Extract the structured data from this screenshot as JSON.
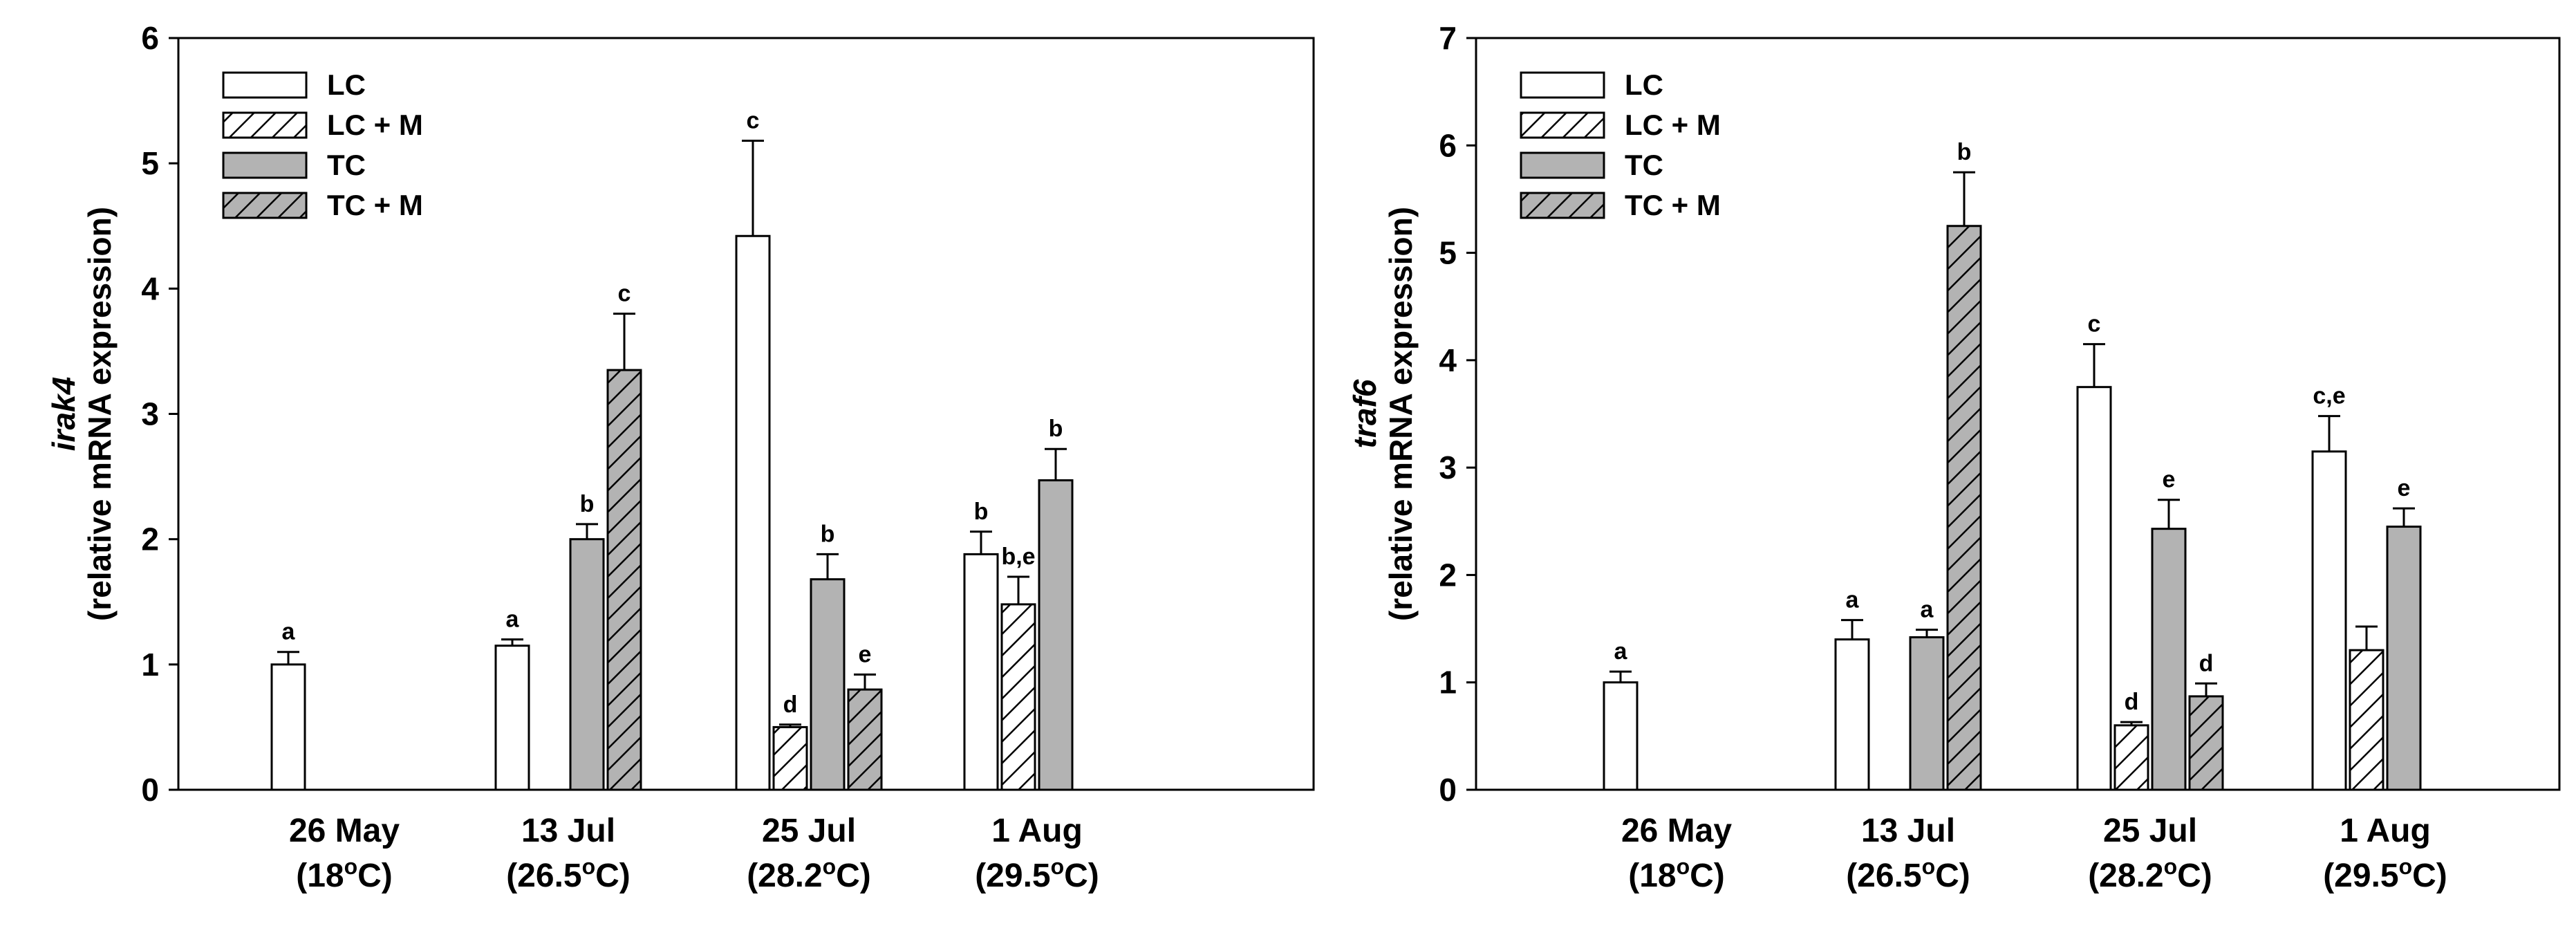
{
  "colors": {
    "lc": "#ffffff",
    "lcm": "#ffffff",
    "tc": "#b3b3b3",
    "tcm": "#b3b3b3",
    "stroke": "#000000"
  },
  "chart_data": [
    {
      "type": "bar",
      "ylabel_gene": "irak4",
      "ylabel": "(relative mRNA expression)",
      "ylim": [
        0,
        6
      ],
      "yticks": [
        "0",
        "1",
        "2",
        "3",
        "4",
        "5",
        "6"
      ],
      "categories": [
        {
          "date": "26 May",
          "temp": "(18oC)",
          "temp_pre": "(18",
          "temp_post": "C)"
        },
        {
          "date": "13 Jul",
          "temp": "(26.5oC)",
          "temp_pre": "(26.5",
          "temp_post": "C)"
        },
        {
          "date": "25 Jul",
          "temp": "(28.2oC)",
          "temp_pre": "(28.2",
          "temp_post": "C)"
        },
        {
          "date": "1 Aug",
          "temp": "(29.5oC)",
          "temp_pre": "(29.5",
          "temp_post": "C)"
        }
      ],
      "legend": [
        "LC",
        "LC + M",
        "TC",
        "TC + M"
      ],
      "series": [
        {
          "name": "LC",
          "values": [
            1.0,
            1.15,
            4.42,
            1.88
          ],
          "errors": [
            0.1,
            0.05,
            0.76,
            0.18
          ],
          "labels": [
            "a",
            "a",
            "c",
            "b"
          ]
        },
        {
          "name": "LC + M",
          "values": [
            null,
            null,
            0.5,
            1.48
          ],
          "errors": [
            null,
            null,
            0.02,
            0.22
          ],
          "labels": [
            null,
            null,
            "d",
            "b,e"
          ]
        },
        {
          "name": "TC",
          "values": [
            null,
            2.0,
            1.68,
            2.47
          ],
          "errors": [
            null,
            0.12,
            0.2,
            0.25
          ],
          "labels": [
            null,
            "b",
            "b",
            "b"
          ]
        },
        {
          "name": "TC + M",
          "values": [
            null,
            3.35,
            0.8,
            null
          ],
          "errors": [
            null,
            0.45,
            0.12,
            null
          ],
          "labels": [
            null,
            "c",
            "e",
            null
          ]
        }
      ]
    },
    {
      "type": "bar",
      "ylabel_gene": "traf6",
      "ylabel": "(relative mRNA expression)",
      "ylim": [
        0,
        7
      ],
      "yticks": [
        "0",
        "1",
        "2",
        "3",
        "4",
        "5",
        "6",
        "7"
      ],
      "categories": [
        {
          "date": "26 May",
          "temp": "(18oC)",
          "temp_pre": "(18",
          "temp_post": "C)"
        },
        {
          "date": "13 Jul",
          "temp": "(26.5oC)",
          "temp_pre": "(26.5",
          "temp_post": "C)"
        },
        {
          "date": "25 Jul",
          "temp": "(28.2oC)",
          "temp_pre": "(28.2",
          "temp_post": "C)"
        },
        {
          "date": "1 Aug",
          "temp": "(29.5oC)",
          "temp_pre": "(29.5",
          "temp_post": "C)"
        }
      ],
      "legend": [
        "LC",
        "LC + M",
        "TC",
        "TC + M"
      ],
      "series": [
        {
          "name": "LC",
          "values": [
            1.0,
            1.4,
            3.75,
            3.15
          ],
          "errors": [
            0.1,
            0.18,
            0.4,
            0.33
          ],
          "labels": [
            "a",
            "a",
            "c",
            "c,e"
          ]
        },
        {
          "name": "LC + M",
          "values": [
            null,
            null,
            0.6,
            1.3
          ],
          "errors": [
            null,
            null,
            0.03,
            0.22
          ],
          "labels": [
            null,
            null,
            "d",
            null
          ]
        },
        {
          "name": "TC",
          "values": [
            null,
            1.42,
            2.43,
            2.45
          ],
          "errors": [
            null,
            0.07,
            0.27,
            0.17
          ],
          "labels": [
            null,
            "a",
            "e",
            "e"
          ]
        },
        {
          "name": "TC + M",
          "values": [
            null,
            5.25,
            0.87,
            null
          ],
          "errors": [
            null,
            0.5,
            0.12,
            null
          ],
          "labels": [
            null,
            "b",
            "d",
            null
          ]
        }
      ]
    }
  ]
}
